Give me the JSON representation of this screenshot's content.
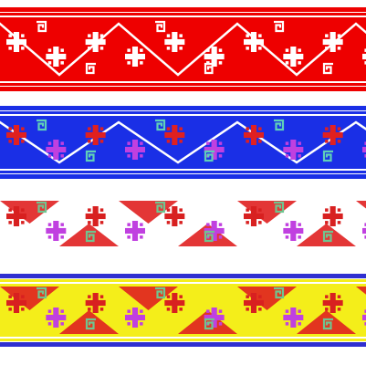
{
  "bands": [
    {
      "id": "red-band",
      "background": "#ee0000",
      "border_outer": "#ee0000",
      "border_inner": "#ffffff",
      "zigzag": "#ffffff",
      "fret": "#ffffff",
      "cross_colors": [
        "#ffffff",
        "#ffffff"
      ],
      "fill_triangles": false
    },
    {
      "id": "blue-band",
      "background": "#1a2fe6",
      "border_outer": "#1a2fe6",
      "border_inner": "#ffffff",
      "zigzag": "#ffffff",
      "fret": "#5fd0b8",
      "cross_colors": [
        "#e02020",
        "#c040e0"
      ],
      "fill_triangles": false
    },
    {
      "id": "white-band",
      "background": "#ffffff",
      "border_outer": null,
      "border_inner": null,
      "zigzag": null,
      "fret": "#6fc590",
      "cross_colors": [
        "#d82020",
        "#c040e0"
      ],
      "fill_triangles": true,
      "triangle_color": "#e02020"
    },
    {
      "id": "yellow-band",
      "background": "#f4ee1a",
      "border_outer": "#3030d0",
      "border_inner": "#ffffff",
      "zigzag": null,
      "fret": "#6fc590",
      "cross_colors": [
        "#d82020",
        "#c040e0"
      ],
      "fill_triangles": true,
      "triangle_color": "#e02020"
    }
  ]
}
